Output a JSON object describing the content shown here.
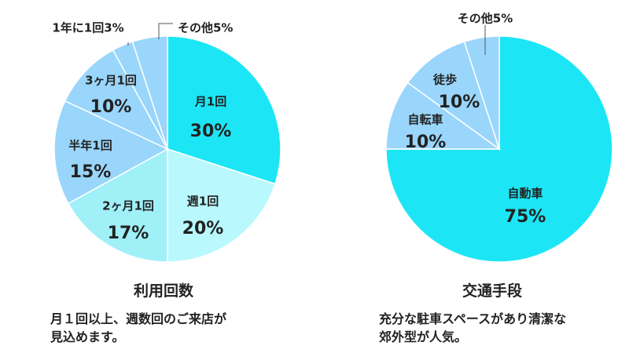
{
  "colors": {
    "slice_1": "#1ce6f5",
    "slice_2": "#b9f8fc",
    "slice_3": "#a0f0f8",
    "slice_4": "#9ad6fb",
    "slice_5": "#9ad6fb",
    "slice_6": "#9ad6fb",
    "slice_7": "#9ad6fb",
    "border": "#ffffff",
    "leader_line": "#555555",
    "text": "#222222"
  },
  "chart_data": [
    {
      "type": "pie",
      "title": "利用回数",
      "caption": [
        "月１回以上、週数回のご来店が",
        "見込めます。"
      ],
      "slices": [
        {
          "label": "月1回",
          "value": 30,
          "value_label": "30%"
        },
        {
          "label": "週1回",
          "value": 20,
          "value_label": "20%"
        },
        {
          "label": "2ヶ月1回",
          "value": 17,
          "value_label": "17%"
        },
        {
          "label": "半年1回",
          "value": 15,
          "value_label": "15%"
        },
        {
          "label": "3ヶ月1回",
          "value": 10,
          "value_label": "10%"
        },
        {
          "label": "1年に1回",
          "value": 3,
          "value_label": "1年に1回3%"
        },
        {
          "label": "その他",
          "value": 5,
          "value_label": "その他5%"
        }
      ]
    },
    {
      "type": "pie",
      "title": "交通手段",
      "caption": [
        "充分な駐車スペースがあり清潔な",
        "郊外型が人気。"
      ],
      "slices": [
        {
          "label": "自動車",
          "value": 75,
          "value_label": "75%"
        },
        {
          "label": "自転車",
          "value": 10,
          "value_label": "10%"
        },
        {
          "label": "徒歩",
          "value": 10,
          "value_label": "10%"
        },
        {
          "label": "その他",
          "value": 5,
          "value_label": "その他5%"
        }
      ]
    }
  ]
}
